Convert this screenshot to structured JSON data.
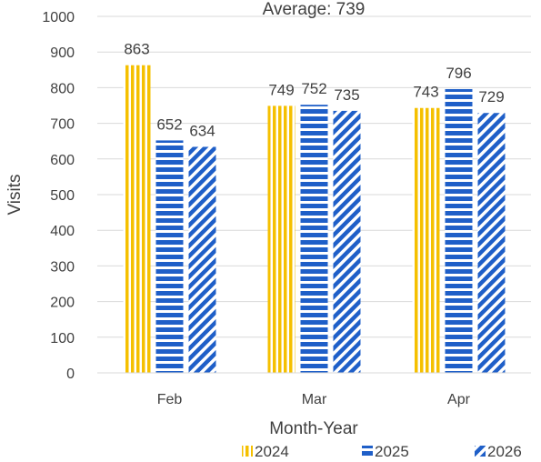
{
  "chart_data": {
    "type": "bar",
    "title": "Average: 739",
    "xlabel": "Month-Year",
    "ylabel": "Visits",
    "categories": [
      "Feb",
      "Mar",
      "Apr"
    ],
    "series": [
      {
        "name": "2024",
        "values": [
          863,
          749,
          743
        ],
        "color": "#F5C000",
        "pattern": "vertical-stripes"
      },
      {
        "name": "2025",
        "values": [
          652,
          752,
          796
        ],
        "color": "#1F5FC8",
        "pattern": "horizontal-stripes"
      },
      {
        "name": "2026",
        "values": [
          634,
          735,
          729
        ],
        "color": "#1F5FC8",
        "pattern": "diagonal-stripes"
      }
    ],
    "data_labels": [
      [
        "863",
        "749",
        "743"
      ],
      [
        "652",
        "752",
        "796"
      ],
      [
        "634",
        "735",
        "729"
      ]
    ],
    "ylim": [
      0,
      1000
    ],
    "yticks": [
      0,
      100,
      200,
      300,
      400,
      500,
      600,
      700,
      800,
      900,
      1000
    ],
    "ytick_labels": [
      "0",
      "100",
      "200",
      "300",
      "400",
      "500",
      "600",
      "700",
      "800",
      "900",
      "1000"
    ],
    "grid": true,
    "legend_position": "bottom"
  }
}
